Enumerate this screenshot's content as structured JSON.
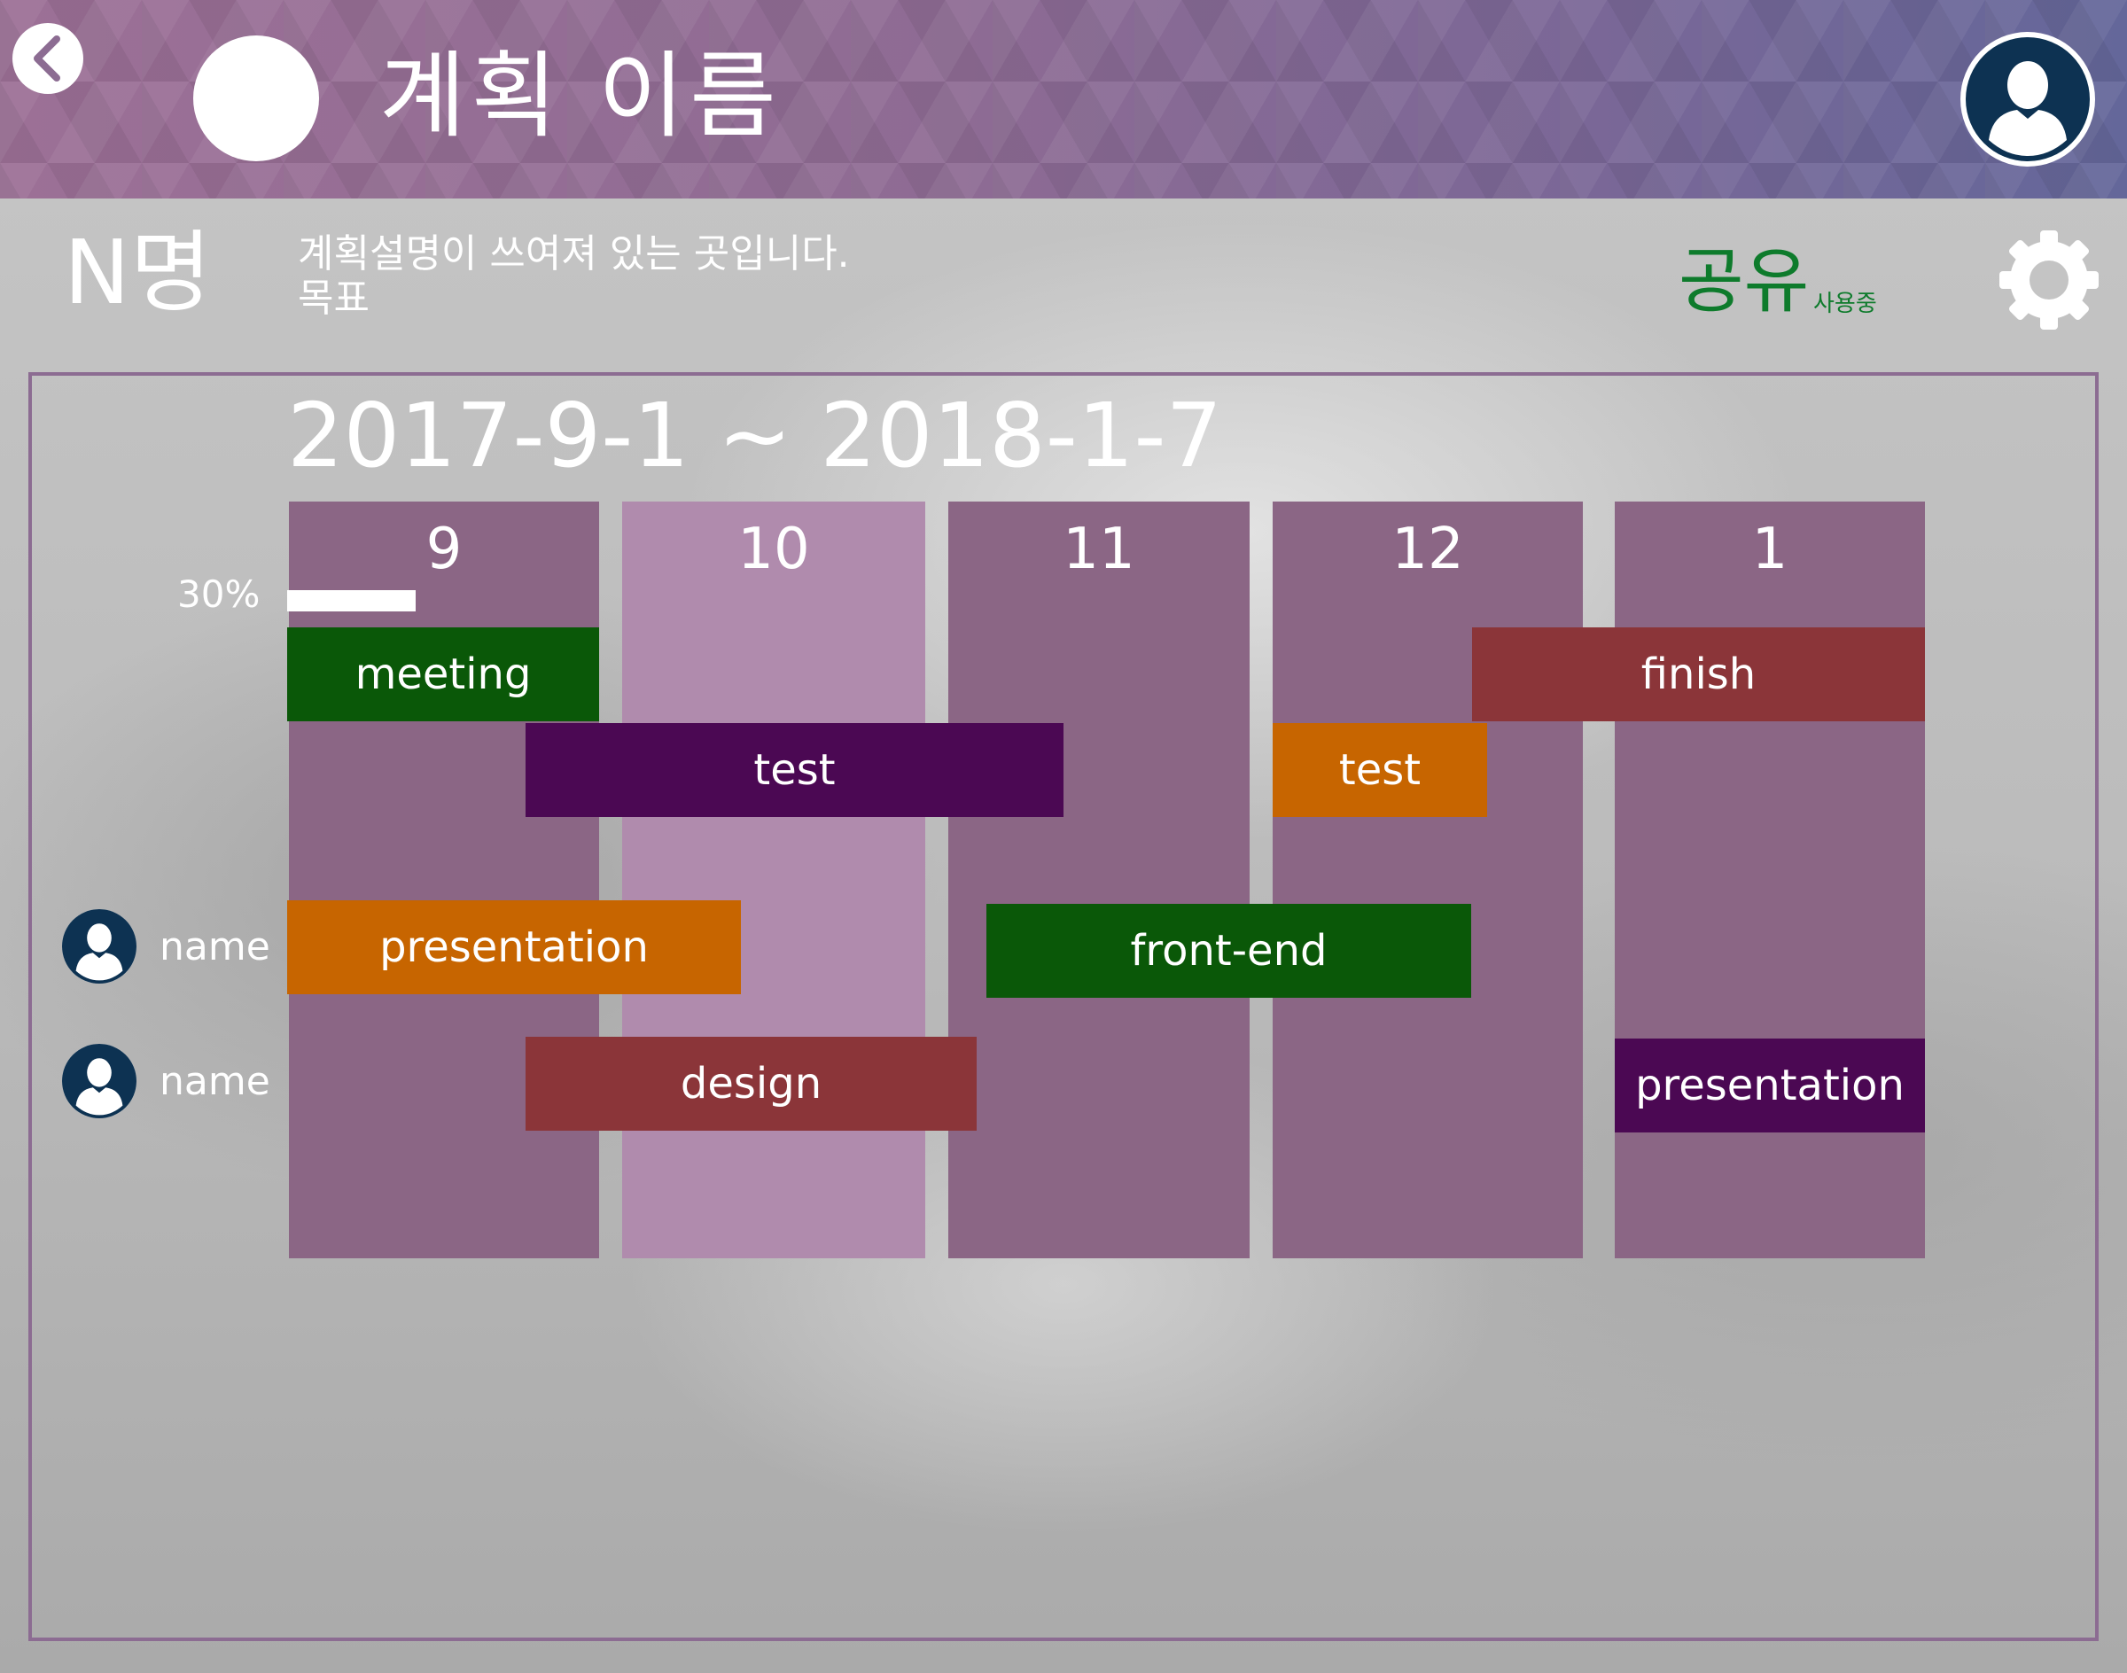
{
  "header": {
    "back_icon": "chevron-left-icon",
    "title": "계획 이름",
    "profile_icon": "user-avatar-icon"
  },
  "info": {
    "member_count": "N명",
    "description_line1": "계획설명이 쓰여져 있는 곳입니다.",
    "description_line2": "목표",
    "share_label": "공유",
    "share_status": "사용중",
    "share_color": "#0e7b2c",
    "settings_icon": "gear-icon"
  },
  "timeline": {
    "date_range": "2017-9-1 ~ 2018-1-7",
    "months": [
      {
        "label": "9",
        "color": "#8b6685"
      },
      {
        "label": "10",
        "color": "#b08bad"
      },
      {
        "label": "11",
        "color": "#8b6685"
      },
      {
        "label": "12",
        "color": "#8b6685"
      },
      {
        "label": "1",
        "color": "#8b6685"
      }
    ],
    "progress": {
      "label": "30%",
      "value": 0.3
    },
    "tasks": [
      {
        "label": "meeting",
        "color": "#0a5808"
      },
      {
        "label": "test",
        "color": "#4b0853"
      },
      {
        "label": "finish",
        "color": "#8b3539"
      },
      {
        "label": "test",
        "color": "#c76500"
      },
      {
        "label": "presentation",
        "color": "#c76500"
      },
      {
        "label": "front-end",
        "color": "#0a5808"
      },
      {
        "label": "design",
        "color": "#8b3539"
      },
      {
        "label": "presentation",
        "color": "#4b0853"
      }
    ],
    "members": [
      {
        "name": "name",
        "icon": "user-avatar-icon"
      },
      {
        "name": "name",
        "icon": "user-avatar-icon"
      }
    ]
  }
}
